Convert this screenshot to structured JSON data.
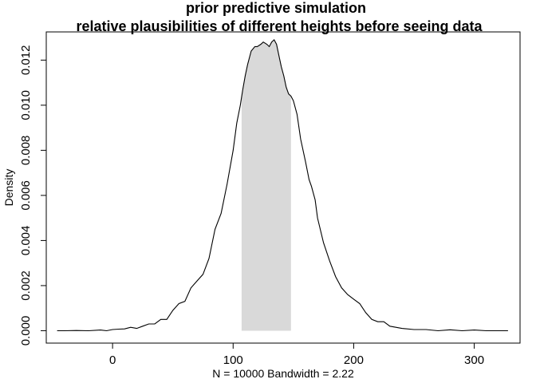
{
  "chart_data": {
    "type": "area",
    "title": "prior predictive simulation",
    "subtitle": "relative plausibilities of different heights before seeing data",
    "xlabel": "N = 10000   Bandwidth = 2.22",
    "ylabel": "Density",
    "xlim": [
      -55,
      338
    ],
    "ylim": [
      -0.00055,
      0.01325
    ],
    "x_ticks": [
      0,
      100,
      200,
      300
    ],
    "y_ticks": [
      0.0,
      0.002,
      0.004,
      0.006,
      0.008,
      0.01,
      0.012
    ],
    "x_tick_labels": [
      "0",
      "100",
      "200",
      "300"
    ],
    "y_tick_labels": [
      "0.000",
      "0.002",
      "0.004",
      "0.006",
      "0.008",
      "0.010",
      "0.012"
    ],
    "line_color": "#000000",
    "shade_color": "#d9d9d9",
    "shaded_interval": [
      107,
      148
    ],
    "grid": false,
    "series": [
      {
        "x": [
          -46,
          -40,
          -30,
          -20,
          -10,
          -5,
          0,
          5,
          10,
          15,
          20,
          25,
          30,
          35,
          40,
          45,
          50,
          55,
          60,
          65,
          70,
          75,
          80,
          85,
          90,
          95,
          100,
          103,
          106,
          108,
          110,
          112,
          115,
          118,
          120,
          123,
          125,
          128,
          130,
          132,
          134,
          136,
          138,
          140,
          142,
          144,
          146,
          148,
          150,
          153,
          156,
          160,
          163,
          165,
          168,
          170,
          175,
          180,
          185,
          190,
          195,
          200,
          205,
          210,
          215,
          220,
          225,
          230,
          240,
          250,
          260,
          270,
          280,
          290,
          300,
          310,
          320,
          328
        ],
        "y": [
          0.0,
          0.0,
          1e-05,
          0.0,
          3e-05,
          0.0,
          5e-05,
          7e-05,
          8e-05,
          0.00015,
          0.0001,
          0.0002,
          0.0003,
          0.0003,
          0.0005,
          0.0005,
          0.0009,
          0.0012,
          0.0013,
          0.0019,
          0.0022,
          0.0025,
          0.0032,
          0.0045,
          0.0052,
          0.0065,
          0.008,
          0.0092,
          0.01,
          0.0107,
          0.0113,
          0.0118,
          0.0124,
          0.0126,
          0.0126,
          0.0127,
          0.0128,
          0.0127,
          0.0126,
          0.0128,
          0.0129,
          0.0127,
          0.0122,
          0.0117,
          0.0113,
          0.0108,
          0.0105,
          0.0104,
          0.0102,
          0.0096,
          0.0085,
          0.0075,
          0.0067,
          0.0064,
          0.0058,
          0.005,
          0.0039,
          0.0031,
          0.0024,
          0.0019,
          0.0016,
          0.0014,
          0.0012,
          0.0008,
          0.0005,
          0.0004,
          0.0004,
          0.0002,
          0.0001,
          5e-05,
          5e-05,
          0.0,
          4e-05,
          0.0,
          3e-05,
          0.0,
          0.0,
          0.0
        ]
      }
    ]
  }
}
